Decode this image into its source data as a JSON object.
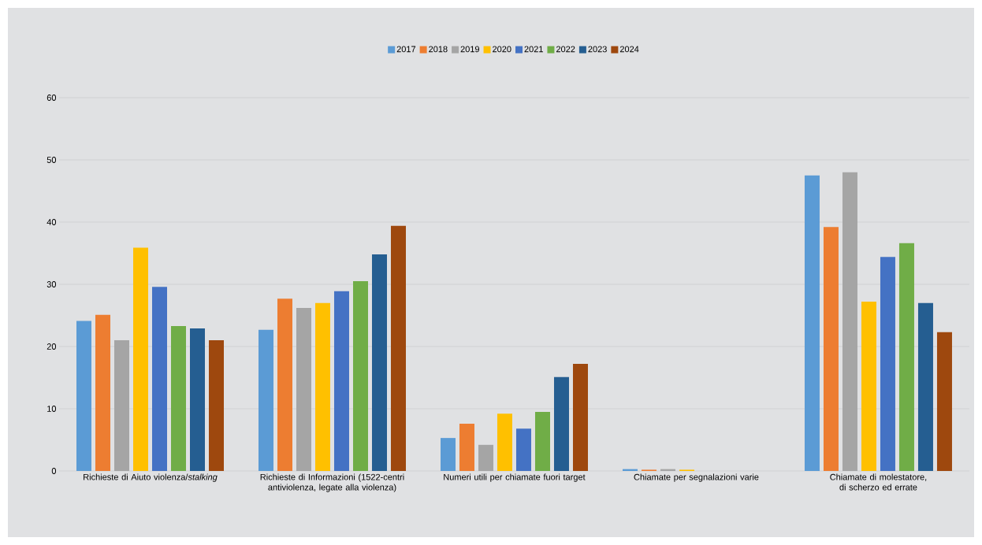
{
  "chart_data": {
    "type": "bar",
    "categories": [
      "Richieste di Aiuto violenza/*stalking*",
      "Richieste di Informazioni (1522-centri antiviolenza, legate alla violenza)",
      "Numeri utili per chiamate fuori target",
      "Chiamate per segnalazioni varie",
      "Chiamate di molestatore, di scherzo ed errate"
    ],
    "series": [
      {
        "name": "2017",
        "color": "#5b9bd5",
        "values": [
          24.1,
          22.7,
          5.3,
          0.3,
          47.5
        ]
      },
      {
        "name": "2018",
        "color": "#ed7d31",
        "values": [
          25.1,
          27.7,
          7.6,
          0.2,
          39.2
        ]
      },
      {
        "name": "2019",
        "color": "#a5a5a5",
        "values": [
          21.0,
          26.2,
          4.2,
          0.3,
          48.0
        ]
      },
      {
        "name": "2020",
        "color": "#ffc000",
        "values": [
          35.9,
          27.0,
          9.2,
          0.2,
          27.2
        ]
      },
      {
        "name": "2021",
        "color": "#4472c4",
        "values": [
          29.6,
          28.9,
          6.8,
          null,
          34.4
        ]
      },
      {
        "name": "2022",
        "color": "#70ad47",
        "values": [
          23.3,
          30.5,
          9.5,
          null,
          36.6
        ]
      },
      {
        "name": "2023",
        "color": "#255e91",
        "values": [
          22.9,
          34.8,
          15.1,
          null,
          27.0
        ]
      },
      {
        "name": "2024",
        "color": "#9e480e",
        "values": [
          21.0,
          39.4,
          17.2,
          null,
          22.3
        ]
      }
    ],
    "ylim": [
      0,
      60
    ],
    "yticks": [
      0,
      10,
      20,
      30,
      40,
      50,
      60
    ],
    "grid": "y",
    "legend": "top"
  }
}
